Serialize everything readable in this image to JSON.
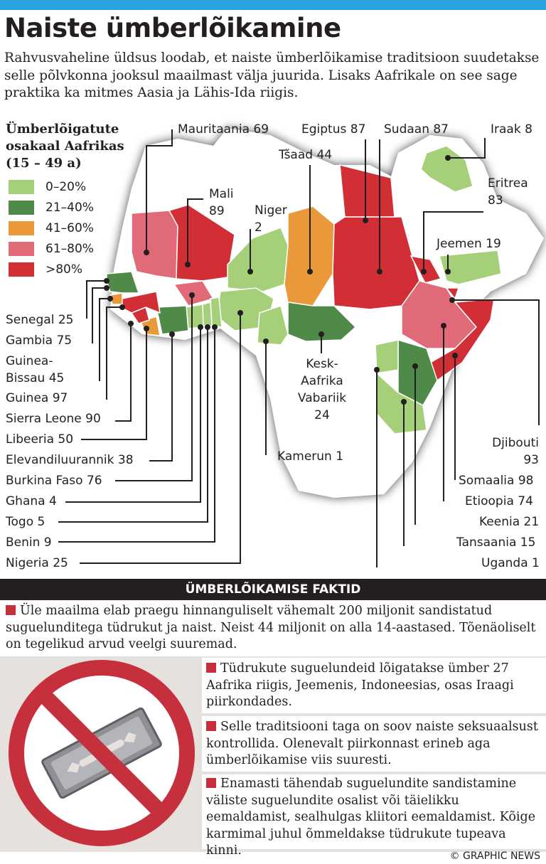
{
  "title": "Naiste ümberlõikamine",
  "intro": "Rahvusvaheline üldsus loodab, et naiste ümberlõikamise traditsioon suudetakse selle põlvkonna jooksul maailmast välja juurida. Lisaks Aafrikale on see sage praktika ka mitmes Aasia ja Lähis-Ida riigis.",
  "legend": {
    "title_line1": "Ümberlõigatute",
    "title_line2": "osakaal Aafrikas",
    "title_line3": "(15 – 49 a)",
    "items": [
      {
        "label": "0–20%",
        "color": "#a6cf7a"
      },
      {
        "label": "21–40%",
        "color": "#4f8a49"
      },
      {
        "label": "41–60%",
        "color": "#e9993a"
      },
      {
        "label": "61–80%",
        "color": "#e06a78"
      },
      {
        "label": ">80%",
        "color": "#d12e36"
      }
    ]
  },
  "countries": {
    "mauritania": "Mauritaania 69",
    "egypt": "Egiptus 87",
    "sudan": "Sudaan 87",
    "iraq": "Iraak 8",
    "chad": "Tšaad 44",
    "eritrea_1": "Eritrea",
    "eritrea_2": "83",
    "mali_1": "Mali",
    "mali_2": "89",
    "niger_1": "Niger",
    "niger_2": "2",
    "yemen": "Jeemen 19",
    "senegal": "Senegal 25",
    "gambia": "Gambia 75",
    "guinea_bissau_1": "Guinea-",
    "guinea_bissau_2": "Bissau 45",
    "guinea": "Guinea 97",
    "sierra_leone": "Sierra Leone 90",
    "liberia": "Libeeria 50",
    "ivory_coast": "Elevandiluurannik 38",
    "burkina_faso": "Burkina Faso 76",
    "ghana": "Ghana 4",
    "togo": "Togo 5",
    "benin": "Benin 9",
    "nigeria": "Nigeria 25",
    "car_1": "Kesk-",
    "car_2": "Aafrika",
    "car_3": "Vabariik",
    "car_4": "24",
    "cameroon": "Kamerun 1",
    "djibouti_1": "Djibouti",
    "djibouti_2": "93",
    "somalia": "Somaalia 98",
    "ethiopia": "Etioopia 74",
    "kenya": "Keenia 21",
    "tanzania": "Tansaania 15",
    "uganda": "Uganda 1"
  },
  "facts": {
    "heading": "ÜMBERLÕIKAMISE FAKTID",
    "fact1": "Üle maailma elab praegu hinnanguliselt vähemalt 200 miljonit sandistatud suguelunditega tüdrukut ja naist. Neist 44 miljonit on alla 14-aastased. Tõenäoliselt on tegelikud arvud veelgi suuremad.",
    "fact2": "Tüdrukute suguelundeid lõigatakse ümber 27 Aafrika riigis, Jeemenis, Indoneesias, osas Iraagi piirkondades.",
    "fact3": "Selle traditsiooni taga on soov naiste seksuaalsust kontrollida. Olenevalt piirkonnast erineb aga ümberlõikamise viis suuresti.",
    "fact4": "Enamasti tähendab suguelundite sandistamine väliste suguelundite osalist või täielikku eemaldamist, sealhulgas kliitori eemaldamist. Kõige karmimal juhul õmmeldakse tüdrukute tupeava kinni."
  },
  "credit": "© GRAPHIC NEWS",
  "colors": {
    "accent_blue": "#29a3e2",
    "bullet_red": "#c6303c",
    "dark": "#231f20"
  }
}
